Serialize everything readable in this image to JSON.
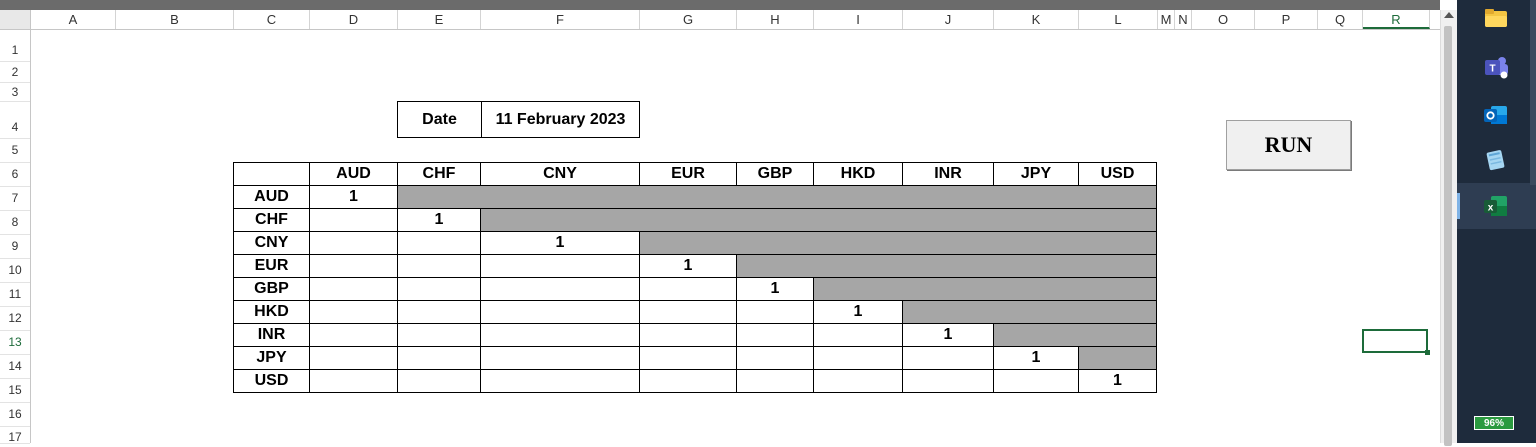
{
  "columns": [
    "A",
    "B",
    "C",
    "D",
    "E",
    "F",
    "G",
    "H",
    "I",
    "J",
    "K",
    "L",
    "M",
    "N",
    "O",
    "P",
    "Q",
    "R"
  ],
  "rows": [
    "1",
    "2",
    "3",
    "4",
    "5",
    "6",
    "7",
    "8",
    "9",
    "10",
    "11",
    "12",
    "13",
    "14",
    "15",
    "16",
    "17"
  ],
  "selected_column": "R",
  "selected_row": "13",
  "date_box": {
    "label": "Date",
    "value": "11 February 2023"
  },
  "matrix": {
    "headers": [
      "AUD",
      "CHF",
      "CNY",
      "EUR",
      "GBP",
      "HKD",
      "INR",
      "JPY",
      "USD"
    ],
    "rows": [
      {
        "label": "AUD",
        "diag": "1"
      },
      {
        "label": "CHF",
        "diag": "1"
      },
      {
        "label": "CNY",
        "diag": "1"
      },
      {
        "label": "EUR",
        "diag": "1"
      },
      {
        "label": "GBP",
        "diag": "1"
      },
      {
        "label": "HKD",
        "diag": "1"
      },
      {
        "label": "INR",
        "diag": "1"
      },
      {
        "label": "JPY",
        "diag": "1"
      },
      {
        "label": "USD",
        "diag": "1"
      }
    ],
    "upper_fill_color": "#a6a6a6"
  },
  "run_button": {
    "label": "RUN"
  },
  "taskbar": {
    "icons": [
      "file-explorer-icon",
      "teams-icon",
      "outlook-icon",
      "notepad-icon",
      "excel-icon"
    ],
    "active": "excel-icon",
    "battery": "96%"
  },
  "accent": "#1d6b3a"
}
